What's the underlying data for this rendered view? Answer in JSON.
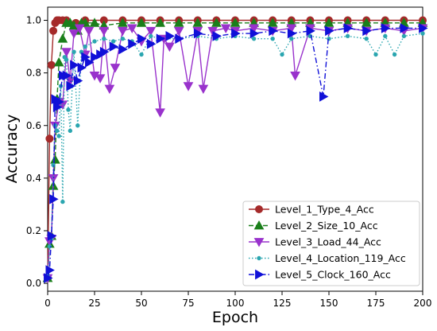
{
  "chart_data": {
    "type": "line",
    "title": "",
    "xlabel": "Epoch",
    "ylabel": "Accuracy",
    "xlim": [
      0,
      200
    ],
    "ylim": [
      -0.03,
      1.05
    ],
    "xticks": [
      "0",
      "25",
      "50",
      "75",
      "100",
      "125",
      "150",
      "175",
      "200"
    ],
    "yticks": [
      "0.0",
      "0.2",
      "0.4",
      "0.6",
      "0.8",
      "1.0"
    ],
    "grid": false,
    "legend_position": "lower-right",
    "series": [
      {
        "name": "Level_1_Type_4_Acc",
        "color": "#a52a2a",
        "marker": "circle",
        "line_style": "solid",
        "x": [
          0,
          1,
          2,
          3,
          4,
          5,
          6,
          8,
          10,
          15,
          20,
          30,
          40,
          50,
          60,
          70,
          80,
          90,
          100,
          110,
          120,
          130,
          140,
          150,
          160,
          170,
          180,
          190,
          200
        ],
        "y": [
          0.02,
          0.55,
          0.83,
          0.96,
          0.99,
          1.0,
          1.0,
          1.0,
          1.0,
          0.99,
          1.0,
          1.0,
          1.0,
          1.0,
          1.0,
          1.0,
          1.0,
          1.0,
          1.0,
          1.0,
          1.0,
          1.0,
          1.0,
          1.0,
          1.0,
          1.0,
          1.0,
          1.0,
          1.0
        ]
      },
      {
        "name": "Level_2_Size_10_Acc",
        "color": "#1a7f1a",
        "marker": "triangle-up",
        "line_style": "dashed",
        "x": [
          0,
          1,
          2,
          3,
          4,
          5,
          6,
          8,
          10,
          12,
          14,
          16,
          18,
          20,
          25,
          30,
          40,
          50,
          60,
          70,
          80,
          90,
          100,
          110,
          120,
          130,
          140,
          150,
          160,
          170,
          180,
          190,
          200
        ],
        "y": [
          0.02,
          0.15,
          0.18,
          0.37,
          0.47,
          0.7,
          0.84,
          0.93,
          0.99,
          0.99,
          0.98,
          0.96,
          0.99,
          0.99,
          0.99,
          0.98,
          0.99,
          0.99,
          0.99,
          0.99,
          0.99,
          0.99,
          0.99,
          0.99,
          0.99,
          0.99,
          0.99,
          0.99,
          0.99,
          0.99,
          0.99,
          0.99,
          0.99
        ]
      },
      {
        "name": "Level_3_Load_44_Acc",
        "color": "#9932cc",
        "marker": "triangle-down",
        "line_style": "solid",
        "x": [
          0,
          1,
          2,
          3,
          4,
          6,
          8,
          10,
          12,
          14,
          17,
          20,
          22,
          25,
          28,
          30,
          33,
          36,
          40,
          45,
          50,
          55,
          60,
          62,
          65,
          70,
          75,
          80,
          83,
          88,
          95,
          100,
          110,
          120,
          130,
          132,
          140,
          150,
          160,
          170,
          180,
          190,
          200
        ],
        "y": [
          0.02,
          0.16,
          0.17,
          0.4,
          0.6,
          0.69,
          0.68,
          0.88,
          0.77,
          0.95,
          0.97,
          0.87,
          0.96,
          0.79,
          0.78,
          0.96,
          0.74,
          0.82,
          0.96,
          0.97,
          0.92,
          0.96,
          0.65,
          0.93,
          0.9,
          0.96,
          0.75,
          0.96,
          0.74,
          0.96,
          0.97,
          0.96,
          0.97,
          0.96,
          0.97,
          0.79,
          0.97,
          0.96,
          0.97,
          0.96,
          0.97,
          0.96,
          0.97
        ]
      },
      {
        "name": "Level_4_Location_119_Acc",
        "color": "#2ba6b0",
        "marker": "point",
        "line_style": "dotted",
        "x": [
          0,
          1,
          2,
          3,
          4,
          5,
          6,
          7,
          8,
          9,
          10,
          11,
          12,
          14,
          16,
          18,
          20,
          25,
          30,
          35,
          40,
          45,
          50,
          55,
          60,
          70,
          80,
          90,
          100,
          110,
          120,
          125,
          130,
          140,
          150,
          160,
          170,
          175,
          180,
          185,
          190,
          200
        ],
        "y": [
          0.03,
          0.14,
          0.17,
          0.45,
          0.6,
          0.58,
          0.56,
          0.75,
          0.31,
          0.86,
          0.85,
          0.66,
          0.58,
          0.88,
          0.6,
          0.88,
          0.9,
          0.92,
          0.93,
          0.92,
          0.93,
          0.92,
          0.87,
          0.94,
          0.93,
          0.93,
          0.94,
          0.93,
          0.94,
          0.93,
          0.93,
          0.87,
          0.93,
          0.94,
          0.93,
          0.94,
          0.93,
          0.87,
          0.94,
          0.87,
          0.94,
          0.95
        ]
      },
      {
        "name": "Level_5_Clock_160_Acc",
        "color": "#1010d8",
        "marker": "triangle-right",
        "line_style": "dashdot",
        "x": [
          0,
          1,
          2,
          3,
          4,
          5,
          6,
          8,
          10,
          12,
          14,
          16,
          18,
          20,
          22,
          25,
          28,
          30,
          35,
          40,
          45,
          50,
          55,
          60,
          65,
          70,
          80,
          90,
          100,
          110,
          120,
          130,
          140,
          147,
          150,
          160,
          170,
          180,
          190,
          200
        ],
        "y": [
          0.02,
          0.05,
          0.18,
          0.32,
          0.7,
          0.67,
          0.69,
          0.79,
          0.79,
          0.75,
          0.83,
          0.77,
          0.82,
          0.86,
          0.84,
          0.86,
          0.87,
          0.88,
          0.9,
          0.89,
          0.91,
          0.93,
          0.91,
          0.93,
          0.94,
          0.93,
          0.95,
          0.94,
          0.95,
          0.95,
          0.96,
          0.95,
          0.96,
          0.71,
          0.96,
          0.97,
          0.96,
          0.97,
          0.97,
          0.97
        ]
      }
    ]
  }
}
